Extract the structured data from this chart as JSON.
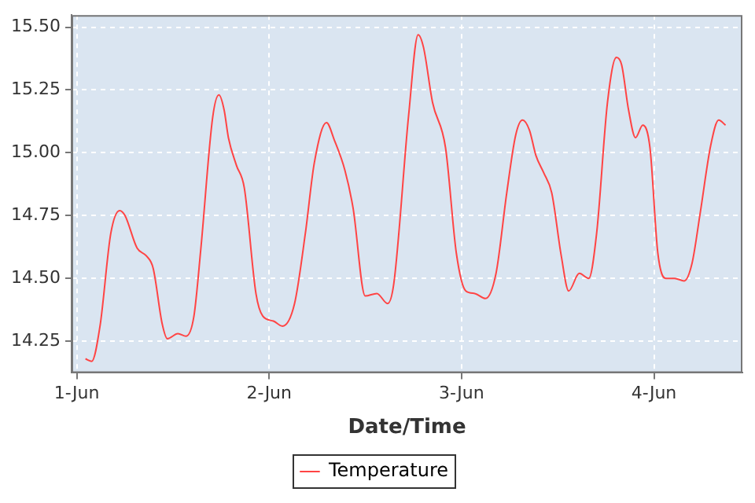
{
  "chart_data": {
    "type": "line",
    "xlabel": "Date/Time",
    "x": [
      "--06-01T01:05",
      "--06-01T01:52",
      "--06-01T02:54",
      "--06-01T04:15",
      "--06-01T05:21",
      "--06-01T06:01",
      "--06-01T07:32",
      "--06-01T08:40",
      "--06-01T09:32",
      "--06-01T10:39",
      "--06-01T11:18",
      "--06-01T12:37",
      "--06-01T13:38",
      "--06-01T14:37",
      "--06-01T15:29",
      "--06-01T16:57",
      "--06-01T17:44",
      "--06-01T18:23",
      "--06-01T18:55",
      "--06-01T19:55",
      "--06-01T20:54",
      "--06-01T22:21",
      "--06-01T23:12",
      "--06-02T00:32",
      "--06-02T01:39",
      "--06-02T03:10",
      "--06-02T04:31",
      "--06-02T05:38",
      "--06-02T07:09",
      "--06-02T08:08",
      "--06-02T09:27",
      "--06-02T10:28",
      "--06-02T11:59",
      "--06-02T13:26",
      "--06-02T14:46",
      "--06-02T15:33",
      "--06-02T17:24",
      "--06-02T18:35",
      "--06-02T19:15",
      "--06-02T20:23",
      "--06-02T22:00",
      "--06-02T23:21",
      "--06-03T00:32",
      "--06-03T01:39",
      "--06-03T02:59",
      "--06-03T04:18",
      "--06-03T05:38",
      "--06-03T06:45",
      "--06-03T07:36",
      "--06-03T08:28",
      "--06-03T09:16",
      "--06-03T10:15",
      "--06-03T11:15",
      "--06-03T12:26",
      "--06-03T13:22",
      "--06-03T14:41",
      "--06-03T15:52",
      "--06-03T16:51",
      "--06-03T18:12",
      "--06-03T19:19",
      "--06-03T19:58",
      "--06-03T20:50",
      "--06-03T21:42",
      "--06-03T22:36",
      "--06-03T23:30",
      "--06-04T00:29",
      "--06-04T01:28",
      "--06-04T02:34",
      "--06-04T03:46",
      "--06-04T04:45",
      "--06-04T05:46",
      "--06-04T07:05",
      "--06-04T08:04",
      "--06-04T08:56"
    ],
    "series": [
      {
        "name": "Temperature",
        "color": "#ff4444",
        "values": [
          14.18,
          14.17,
          14.31,
          14.68,
          14.77,
          14.75,
          14.62,
          14.59,
          14.54,
          14.32,
          14.26,
          14.28,
          14.27,
          14.35,
          14.62,
          15.14,
          15.23,
          15.17,
          15.06,
          14.95,
          14.86,
          14.44,
          14.35,
          14.33,
          14.31,
          14.4,
          14.68,
          14.96,
          15.12,
          15.05,
          14.93,
          14.78,
          14.43,
          14.44,
          14.4,
          14.48,
          15.15,
          15.47,
          15.42,
          15.2,
          15.02,
          14.6,
          14.45,
          14.44,
          14.42,
          14.52,
          14.84,
          15.07,
          15.13,
          15.09,
          14.99,
          14.92,
          14.84,
          14.59,
          14.45,
          14.52,
          14.5,
          14.68,
          15.2,
          15.38,
          15.35,
          15.17,
          15.06,
          15.11,
          15.02,
          14.6,
          14.5,
          14.5,
          14.49,
          14.56,
          14.76,
          15.03,
          15.13,
          15.11
        ]
      }
    ],
    "xlim": [
      "--05-31T23:21",
      "--06-04T11:02"
    ],
    "xticks": [
      {
        "value": "--06-01",
        "label": "1-Jun"
      },
      {
        "value": "--06-02",
        "label": "2-Jun"
      },
      {
        "value": "--06-03",
        "label": "3-Jun"
      },
      {
        "value": "--06-04",
        "label": "4-Jun"
      }
    ],
    "ylim": [
      14.124,
      15.548
    ],
    "yticks": [
      14.25,
      {
        "value": 14.5,
        "label": "14.50"
      },
      14.75,
      {
        "value": 15,
        "label": "15.00"
      },
      15.25,
      {
        "value": 15.5,
        "label": "15.50"
      }
    ],
    "grid": true,
    "legend": "bottom",
    "marker": "none",
    "line_style": "solid"
  }
}
